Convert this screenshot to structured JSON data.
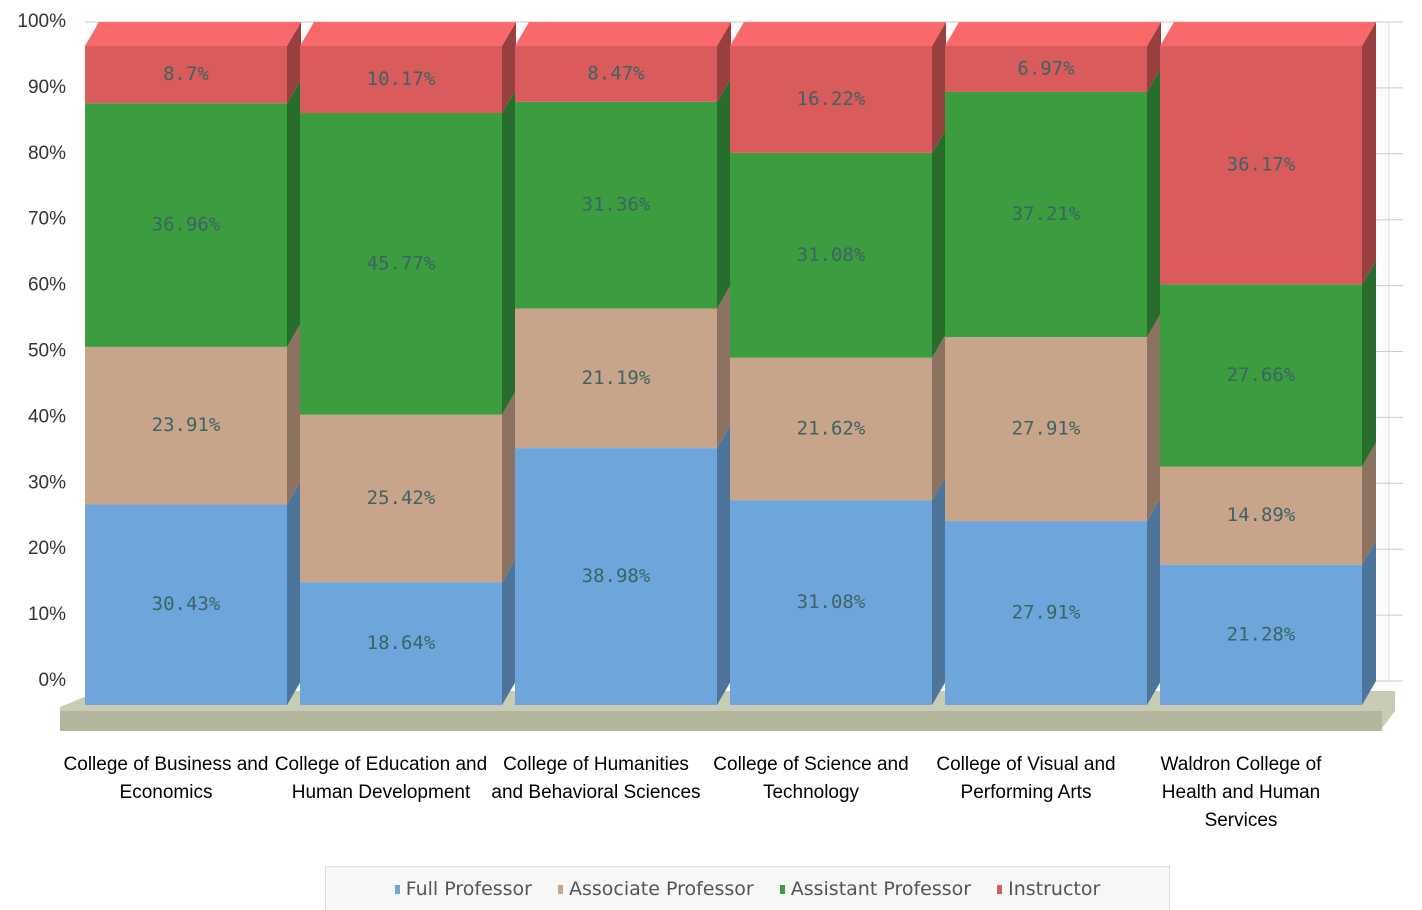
{
  "chart_data": {
    "type": "bar",
    "stacked": true,
    "three_d": true,
    "categories": [
      "College of Business and Economics",
      "College of Education and Human Development",
      "College of Humanities and Behavioral Sciences",
      "College of Science and Technology",
      "College of Visual and Performing Arts",
      "Waldron College of Health and Human Services"
    ],
    "series": [
      {
        "name": "Full Professor",
        "color": "#6ea6dc",
        "values": [
          30.43,
          18.64,
          38.98,
          31.08,
          27.91,
          21.28
        ],
        "value_labels": [
          "30.43%",
          "18.64%",
          "38.98%",
          "31.08%",
          "27.91%",
          "21.28%"
        ]
      },
      {
        "name": "Associate Professor",
        "color": "#c8a48a",
        "values": [
          23.91,
          25.42,
          21.19,
          21.62,
          27.91,
          14.89
        ],
        "value_labels": [
          "23.91%",
          "25.42%",
          "21.19%",
          "21.62%",
          "27.91%",
          "14.89%"
        ]
      },
      {
        "name": "Assistant Professor",
        "color": "#3b9c40",
        "values": [
          36.96,
          45.77,
          31.36,
          31.08,
          37.21,
          27.66
        ],
        "value_labels": [
          "36.96%",
          "45.77%",
          "31.36%",
          "31.08%",
          "37.21%",
          "27.66%"
        ]
      },
      {
        "name": "Instructor",
        "color": "#d95b5c",
        "values": [
          8.7,
          10.17,
          8.47,
          16.22,
          6.97,
          36.17
        ],
        "value_labels": [
          "8.7%",
          "10.17%",
          "8.47%",
          "16.22%",
          "6.97%",
          "36.17%"
        ]
      }
    ],
    "ylim": [
      0,
      100
    ],
    "yticks": [
      {
        "value": 0,
        "label": "0%"
      },
      {
        "value": 10,
        "label": "10%"
      },
      {
        "value": 20,
        "label": "20%"
      },
      {
        "value": 30,
        "label": "30%"
      },
      {
        "value": 40,
        "label": "40%"
      },
      {
        "value": 50,
        "label": "50%"
      },
      {
        "value": 60,
        "label": "60%"
      },
      {
        "value": 70,
        "label": "70%"
      },
      {
        "value": 80,
        "label": "80%"
      },
      {
        "value": 90,
        "label": "90%"
      },
      {
        "value": 100,
        "label": "100%"
      }
    ],
    "grid": true,
    "legend": "bottom"
  }
}
